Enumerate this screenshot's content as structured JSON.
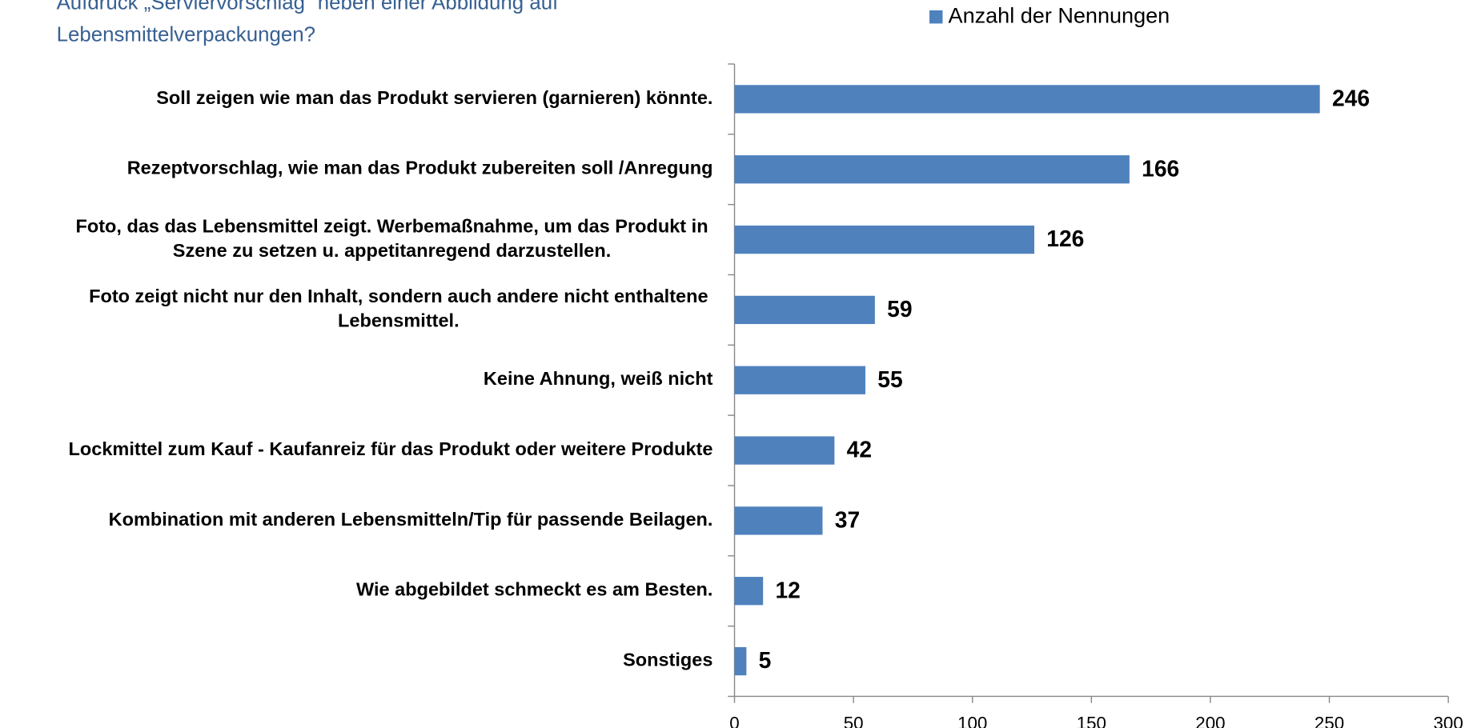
{
  "chart_data": {
    "type": "bar",
    "orientation": "horizontal",
    "title": [
      "Aufdruck „Serviervorschlag“ neben einer Abbildung auf",
      "Lebensmittelverpackungen?"
    ],
    "categories": [
      "Soll zeigen wie man das Produkt servieren (garnieren) könnte.",
      "Rezeptvorschlag, wie man das Produkt zubereiten soll /Anregung",
      "Foto, das das Lebensmittel zeigt. Werbemaßnahme, um das Produkt in\nSzene zu setzen u. appetitanregend darzustellen.",
      "Foto zeigt nicht nur den Inhalt, sondern auch andere nicht enthaltene\nLebensmittel.",
      "Keine Ahnung, weiß nicht",
      "Lockmittel zum Kauf - Kaufanreiz für das Produkt oder weitere Produkte",
      "Kombination mit anderen Lebensmitteln/Tip für passende Beilagen.",
      "Wie abgebildet schmeckt es am Besten.",
      "Sonstiges"
    ],
    "series": [
      {
        "name": "Anzahl der Nennungen",
        "color": "#4f81bd",
        "values": [
          246,
          166,
          126,
          59,
          55,
          42,
          37,
          12,
          5
        ]
      }
    ],
    "xlim": [
      0,
      300
    ],
    "xticks": [
      0,
      50,
      100,
      150,
      200,
      250,
      300
    ],
    "legend": "top"
  }
}
